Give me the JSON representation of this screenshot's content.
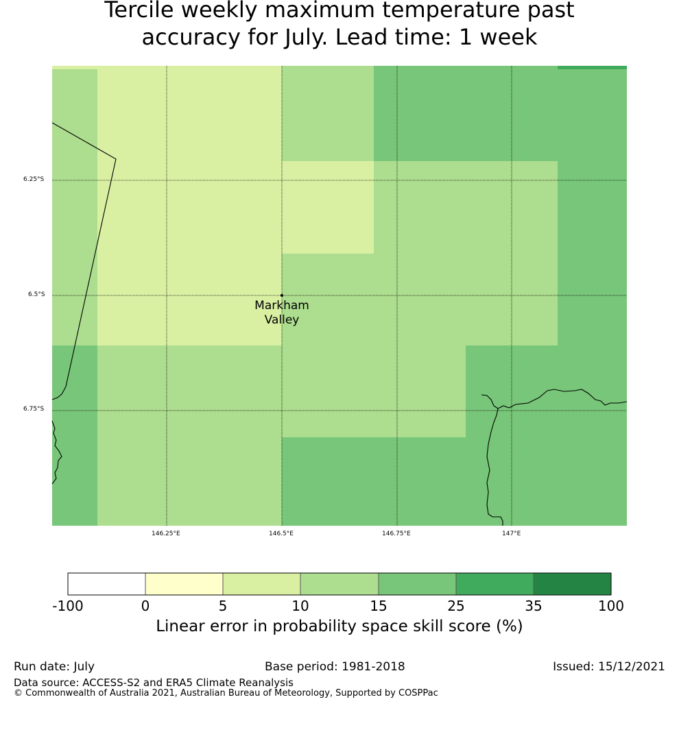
{
  "title_line1": "Tercile weekly maximum temperature past",
  "title_line2": "accuracy for July. Lead time: 1 week",
  "map": {
    "lon_ticks": [
      "146.25°E",
      "146.5°E",
      "146.75°E",
      "147°E"
    ],
    "lat_ticks": [
      "6.25°S",
      "6.5°S",
      "6.75°S"
    ],
    "place_label_line1": "Markham",
    "place_label_line2": "Valley",
    "legend_colors": [
      "#ffffff",
      "#ffffcc",
      "#d9f0a3",
      "#addd8e",
      "#78c679",
      "#41ab5d",
      "#238443"
    ]
  },
  "colorbar": {
    "ticks": [
      "-100",
      "0",
      "5",
      "10",
      "15",
      "25",
      "35",
      "100"
    ],
    "title": "Linear error in probability space skill score (%)"
  },
  "footer": {
    "run_date": "Run date: July",
    "base_period": "Base period: 1981-2018",
    "issued": "Issued: 15/12/2021",
    "data_source": "Data source: ACCESS-S2 and ERA5 Climate Reanalysis",
    "copyright": "© Commonwealth of Australia 2021, Australian Bureau of Meteorology, Supported by COSPPac"
  }
}
